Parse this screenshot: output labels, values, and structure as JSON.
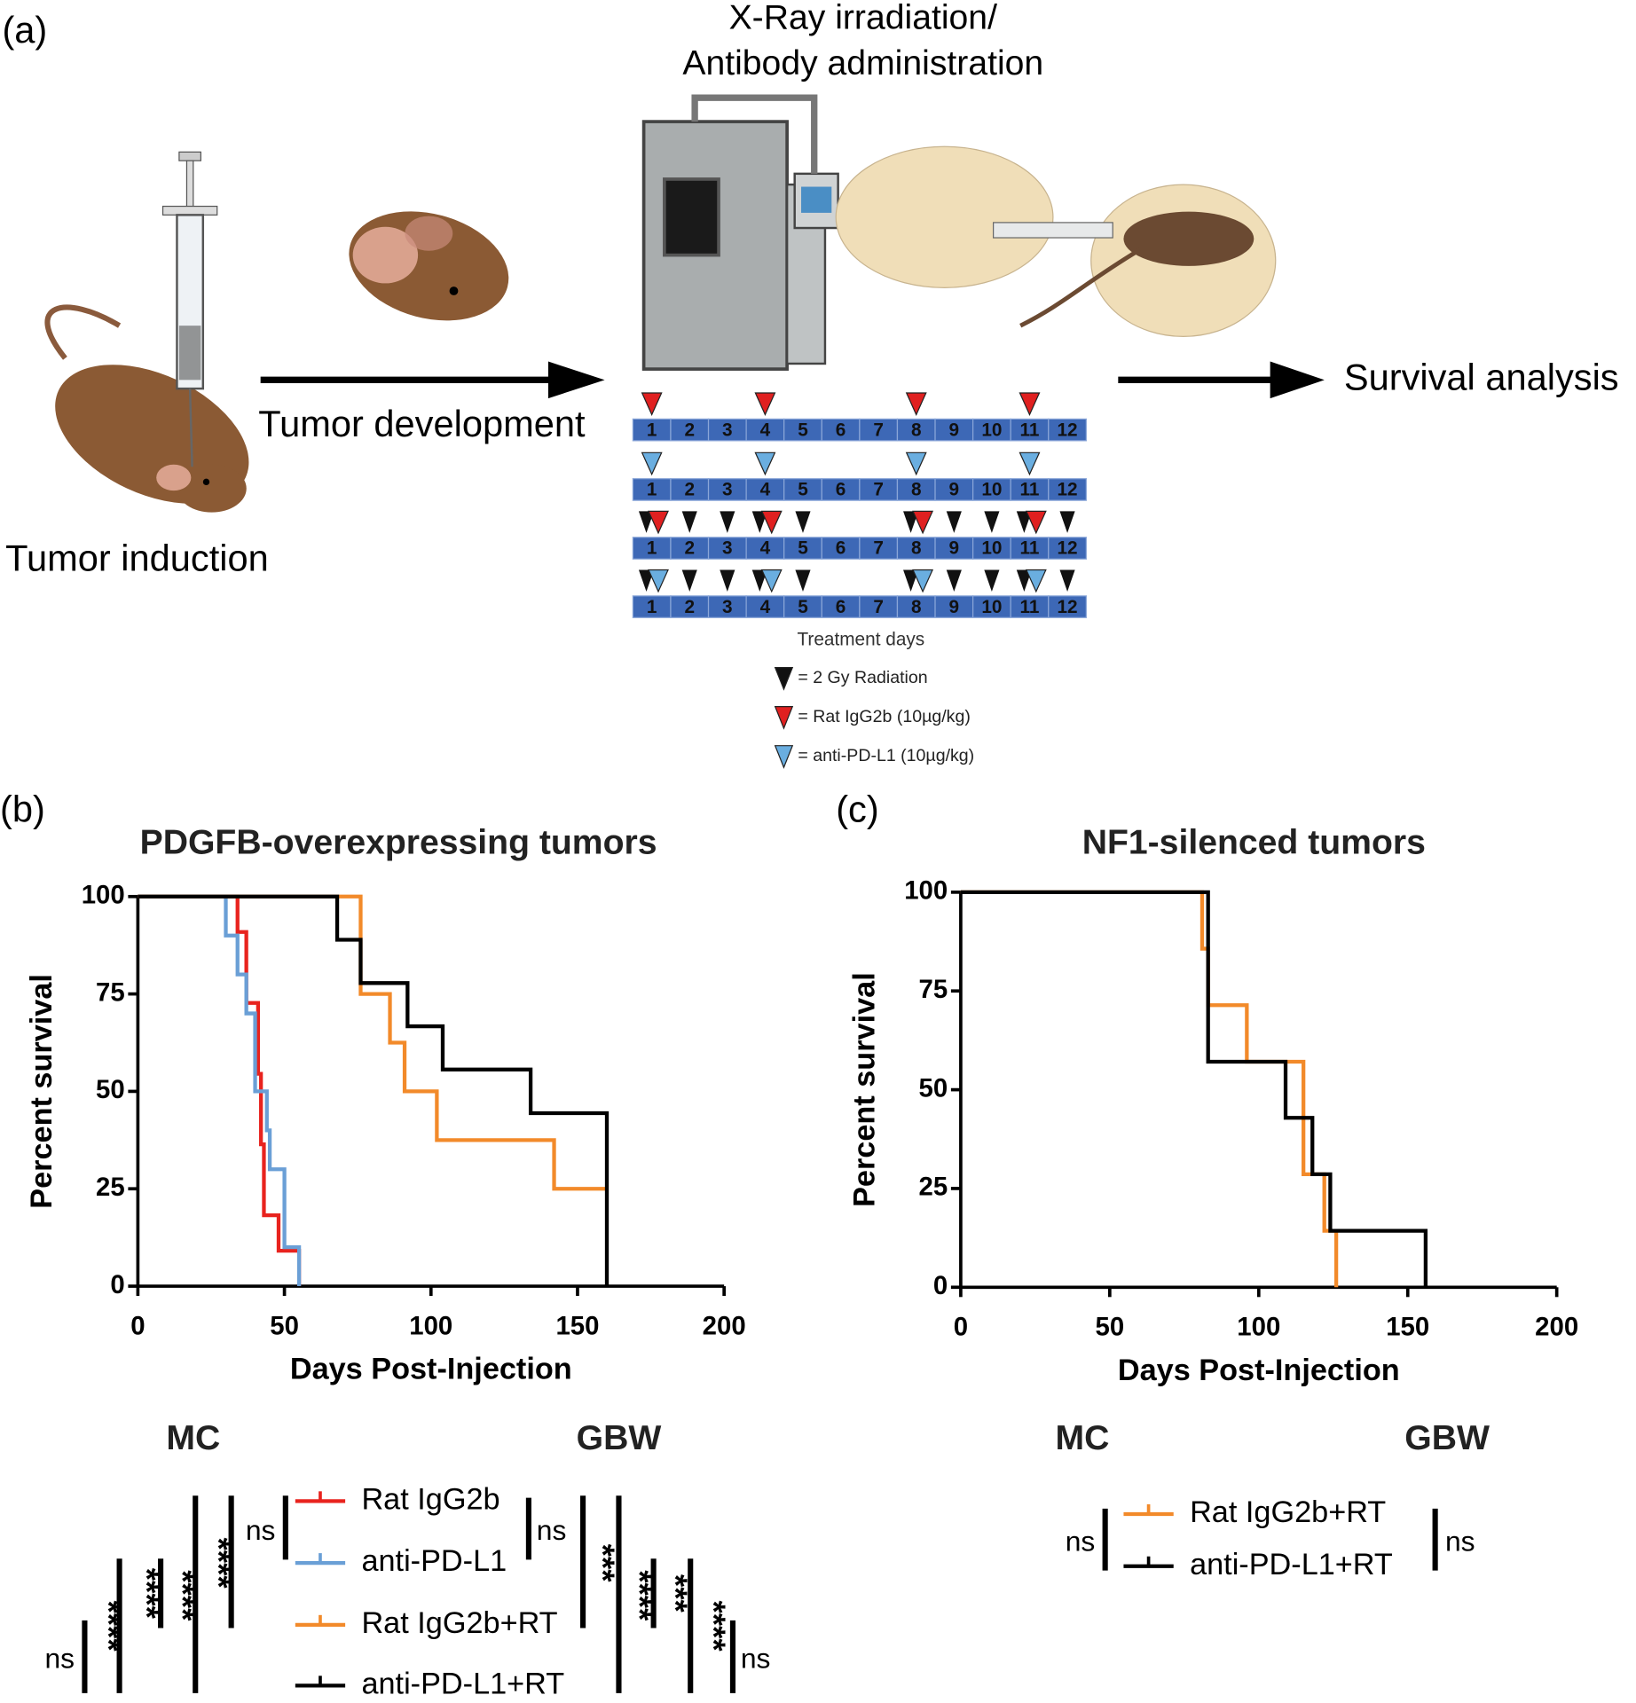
{
  "diagram": {
    "panel_label": "(a)",
    "title_line1": "X-Ray irradiation/",
    "title_line2": "Antibody administration",
    "step1": "Tumor induction",
    "step2": "Tumor development",
    "step3": "Survival analysis",
    "timeline": {
      "days": [
        1,
        2,
        3,
        4,
        5,
        6,
        7,
        8,
        9,
        10,
        11,
        12
      ],
      "caption": "Treatment days",
      "rows": [
        {
          "radiation": [],
          "antibody": [
            1,
            4,
            8,
            11
          ],
          "antibody_color": "#e02020"
        },
        {
          "radiation": [],
          "antibody": [
            1,
            4,
            8,
            11
          ],
          "antibody_color": "#6aaee0"
        },
        {
          "radiation": [
            1,
            2,
            3,
            4,
            5,
            8,
            9,
            10,
            11,
            12
          ],
          "antibody": [
            1,
            4,
            8,
            11
          ],
          "antibody_color": "#e02020"
        },
        {
          "radiation": [
            1,
            2,
            3,
            4,
            5,
            8,
            9,
            10,
            11,
            12
          ],
          "antibody": [
            1,
            4,
            8,
            11
          ],
          "antibody_color": "#6aaee0"
        }
      ],
      "legend": [
        {
          "label": "= 2 Gy Radiation",
          "color": "#111111"
        },
        {
          "label": "= Rat IgG2b  (10µg/kg)",
          "color": "#e02020"
        },
        {
          "label": "= anti-PD-L1  (10µg/kg)",
          "color": "#6aaee0"
        }
      ]
    }
  },
  "chart_data": [
    {
      "type": "step",
      "panel_label": "(b)",
      "title": "PDGFB-overexpressing tumors",
      "x_label": "Days Post-Injection",
      "y_label": "Percent survival",
      "xlim": [
        0,
        200
      ],
      "ylim": [
        0,
        100
      ],
      "xticks": [
        0,
        50,
        100,
        150,
        200
      ],
      "yticks": [
        0,
        25,
        50,
        75,
        100
      ],
      "series": [
        {
          "name": "Rat IgG2b",
          "color": "#e8231e",
          "x": [
            0,
            34,
            37,
            41,
            42,
            43,
            48,
            55
          ],
          "values": [
            100,
            90.9,
            72.7,
            54.5,
            36.4,
            18.2,
            9.1,
            0
          ]
        },
        {
          "name": "anti-PD-L1",
          "color": "#6a9fd6",
          "x": [
            0,
            30,
            34,
            37,
            40,
            44,
            45,
            50,
            55
          ],
          "values": [
            100,
            90,
            80,
            70,
            50,
            40,
            30,
            10,
            0
          ]
        },
        {
          "name": "Rat IgG2b+RT",
          "color": "#f28a2a",
          "x": [
            0,
            76,
            86,
            91,
            102,
            142,
            160
          ],
          "values": [
            100,
            75,
            62.5,
            50,
            37.5,
            25,
            25
          ]
        },
        {
          "name": "anti-PD-L1+RT",
          "color": "#000000",
          "x": [
            0,
            68,
            76,
            92,
            104,
            134,
            160
          ],
          "values": [
            100,
            88.9,
            77.8,
            66.7,
            55.6,
            44.4,
            0
          ]
        }
      ],
      "stats_headers": [
        "MC",
        "GBW"
      ],
      "significance": [
        "ns",
        "ns",
        "****",
        "****",
        "****",
        "****",
        "ns",
        "***",
        "****",
        "***",
        "****",
        "ns"
      ]
    },
    {
      "type": "step",
      "panel_label": "(c)",
      "title": "NF1-silenced tumors",
      "x_label": "Days Post-Injection",
      "y_label": "Percent survival",
      "xlim": [
        0,
        200
      ],
      "ylim": [
        0,
        100
      ],
      "xticks": [
        0,
        50,
        100,
        150,
        200
      ],
      "yticks": [
        0,
        25,
        50,
        75,
        100
      ],
      "series": [
        {
          "name": "Rat IgG2b+RT",
          "color": "#f28a2a",
          "x": [
            0,
            81,
            83,
            96,
            115,
            122,
            126
          ],
          "values": [
            100,
            85.7,
            71.4,
            57.1,
            28.6,
            14.3,
            0
          ]
        },
        {
          "name": "anti-PD-L1+RT",
          "color": "#000000",
          "x": [
            0,
            83,
            109,
            118,
            124,
            156
          ],
          "values": [
            100,
            57.1,
            42.9,
            28.6,
            14.3,
            0
          ]
        }
      ],
      "stats_headers": [
        "MC",
        "GBW"
      ],
      "significance": [
        "ns",
        "ns"
      ]
    }
  ]
}
